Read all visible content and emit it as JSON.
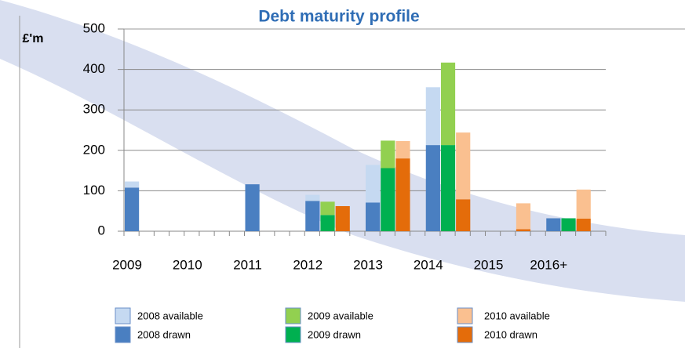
{
  "chart_data": {
    "type": "bar",
    "title": "Debt maturity profile",
    "y_label": "£'m",
    "categories": [
      "2009",
      "2010",
      "2011",
      "2012",
      "2013",
      "2014",
      "2015",
      "2016+"
    ],
    "ylim": [
      0,
      500
    ],
    "yticks": [
      0,
      100,
      200,
      300,
      400,
      500
    ],
    "grid": true,
    "series": [
      {
        "name": "2008 drawn",
        "color": "#4a7fc1",
        "values": [
          108,
          null,
          116,
          75,
          71,
          213,
          null,
          32
        ]
      },
      {
        "name": "2008 available",
        "color": "#c5d9f1",
        "values": [
          15,
          null,
          null,
          15,
          93,
          143,
          null,
          null
        ]
      },
      {
        "name": "2009 drawn",
        "color": "#00b050",
        "values": [
          null,
          null,
          null,
          40,
          156,
          213,
          null,
          32
        ]
      },
      {
        "name": "2009 available",
        "color": "#92d050",
        "values": [
          null,
          null,
          null,
          33,
          68,
          204,
          null,
          null
        ]
      },
      {
        "name": "2010 drawn",
        "color": "#e46c0a",
        "values": [
          null,
          null,
          null,
          62,
          180,
          79,
          5,
          31
        ]
      },
      {
        "name": "2010 available",
        "color": "#fac090",
        "values": [
          null,
          null,
          null,
          null,
          43,
          165,
          64,
          72
        ]
      }
    ]
  }
}
